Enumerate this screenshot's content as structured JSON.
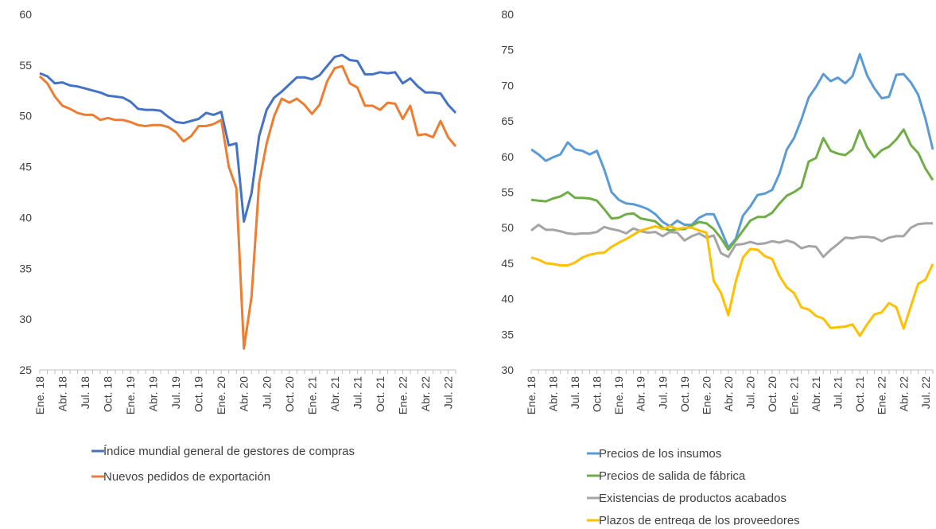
{
  "chart_data": [
    {
      "type": "line",
      "categories": [
        "Ene. 18",
        null,
        null,
        "Abr. 18",
        null,
        null,
        "Jul. 18",
        null,
        null,
        "Oct. 18",
        null,
        null,
        "Ene. 19",
        null,
        null,
        "Abr. 19",
        null,
        null,
        "Jul. 19",
        null,
        null,
        "Oct. 19",
        null,
        null,
        "Ene. 20",
        null,
        null,
        "Abr. 20",
        null,
        null,
        "Jul. 20",
        null,
        null,
        "Oct. 20",
        null,
        null,
        "Ene. 21",
        null,
        null,
        "Abr. 21",
        null,
        null,
        "Jul. 21",
        null,
        null,
        "Oct. 21",
        null,
        null,
        "Ene. 22",
        null,
        null,
        "Abr. 22",
        null,
        null,
        "Jul. 22",
        null
      ],
      "ylim": [
        25,
        60
      ],
      "yticks": [
        25,
        30,
        35,
        40,
        45,
        50,
        55,
        60
      ],
      "grid": false,
      "series": [
        {
          "name": "Índice mundial general de gestores de compras",
          "color": "#4472c4",
          "values": [
            54.2,
            53.9,
            53.2,
            53.3,
            53.0,
            52.9,
            52.7,
            52.5,
            52.3,
            52.0,
            51.9,
            51.8,
            51.4,
            50.7,
            50.6,
            50.6,
            50.5,
            49.9,
            49.4,
            49.3,
            49.5,
            49.7,
            50.3,
            50.1,
            50.4,
            47.1,
            47.3,
            39.6,
            42.4,
            48.0,
            50.6,
            51.8,
            52.4,
            53.1,
            53.8,
            53.8,
            53.6,
            54.0,
            54.9,
            55.8,
            56.0,
            55.5,
            55.4,
            54.1,
            54.1,
            54.3,
            54.2,
            54.3,
            53.2,
            53.7,
            52.9,
            52.3,
            52.3,
            52.2,
            51.1,
            50.3
          ]
        },
        {
          "name": "Nuevos pedidos de exportación",
          "color": "#ed7d31",
          "values": [
            53.9,
            53.2,
            51.9,
            51.0,
            50.7,
            50.3,
            50.1,
            50.1,
            49.6,
            49.8,
            49.6,
            49.6,
            49.4,
            49.1,
            49.0,
            49.1,
            49.1,
            48.9,
            48.4,
            47.5,
            48.0,
            49.0,
            49.0,
            49.2,
            49.6,
            45.0,
            42.9,
            27.1,
            32.2,
            43.4,
            47.3,
            50.0,
            51.7,
            51.3,
            51.7,
            51.1,
            50.2,
            51.1,
            53.4,
            54.7,
            54.9,
            53.2,
            52.8,
            51.0,
            51.0,
            50.6,
            51.3,
            51.2,
            49.7,
            51.0,
            48.1,
            48.2,
            47.9,
            49.5,
            47.9,
            47.0
          ]
        }
      ]
    },
    {
      "type": "line",
      "categories": [
        "Ene. 18",
        null,
        null,
        "Abr. 18",
        null,
        null,
        "Jul. 18",
        null,
        null,
        "Oct. 18",
        null,
        null,
        "Ene. 19",
        null,
        null,
        "Abr. 19",
        null,
        null,
        "Jul. 19",
        null,
        null,
        "Oct. 19",
        null,
        null,
        "Ene. 20",
        null,
        null,
        "Abr. 20",
        null,
        null,
        "Jul. 20",
        null,
        null,
        "Oct. 20",
        null,
        null,
        "Ene. 21",
        null,
        null,
        "Abr. 21",
        null,
        null,
        "Jul. 21",
        null,
        null,
        "Oct. 21",
        null,
        null,
        "Ene. 22",
        null,
        null,
        "Abr. 22",
        null,
        null,
        "Jul. 22",
        null
      ],
      "ylim": [
        30,
        80
      ],
      "yticks": [
        30,
        35,
        40,
        45,
        50,
        55,
        60,
        65,
        70,
        75,
        80
      ],
      "grid": false,
      "series": [
        {
          "name": "Precios de los insumos",
          "color": "#5b9bd5",
          "values": [
            61.0,
            60.3,
            59.4,
            59.9,
            60.3,
            62.0,
            61.0,
            60.8,
            60.3,
            60.8,
            58.2,
            55.0,
            53.9,
            53.4,
            53.3,
            53.0,
            52.6,
            51.9,
            50.8,
            50.2,
            51.0,
            50.4,
            50.4,
            51.4,
            51.9,
            51.9,
            49.7,
            47.2,
            48.4,
            51.7,
            53.0,
            54.6,
            54.8,
            55.3,
            57.6,
            61.0,
            62.6,
            65.2,
            68.3,
            69.8,
            71.6,
            70.6,
            71.1,
            70.3,
            71.3,
            74.4,
            71.4,
            69.6,
            68.2,
            68.4,
            71.5,
            71.6,
            70.4,
            68.7,
            65.3,
            61.0
          ]
        },
        {
          "name": "Precios de salida de fábrica",
          "color": "#70ad47",
          "values": [
            53.9,
            53.8,
            53.7,
            54.1,
            54.4,
            55.0,
            54.2,
            54.2,
            54.1,
            53.8,
            52.6,
            51.3,
            51.4,
            51.9,
            52.0,
            51.3,
            51.1,
            50.9,
            50.0,
            49.6,
            49.8,
            49.8,
            50.3,
            50.8,
            50.6,
            49.8,
            48.5,
            46.9,
            48.2,
            49.6,
            51.0,
            51.5,
            51.5,
            52.1,
            53.4,
            54.5,
            55.0,
            55.7,
            59.3,
            59.8,
            62.6,
            60.8,
            60.4,
            60.2,
            61.0,
            63.7,
            61.3,
            59.9,
            60.9,
            61.4,
            62.4,
            63.8,
            61.6,
            60.5,
            58.3,
            56.7
          ]
        },
        {
          "name": "Existencias de productos acabados",
          "color": "#a5a5a5",
          "values": [
            49.6,
            50.4,
            49.7,
            49.7,
            49.5,
            49.2,
            49.1,
            49.2,
            49.2,
            49.4,
            50.1,
            49.8,
            49.6,
            49.2,
            49.9,
            49.5,
            49.3,
            49.4,
            48.8,
            49.4,
            49.3,
            48.2,
            48.8,
            49.2,
            48.6,
            48.9,
            46.4,
            45.9,
            47.6,
            47.7,
            48.0,
            47.7,
            47.8,
            48.1,
            47.9,
            48.2,
            47.9,
            47.1,
            47.4,
            47.3,
            45.9,
            46.9,
            47.7,
            48.6,
            48.5,
            48.7,
            48.7,
            48.6,
            48.1,
            48.6,
            48.8,
            48.8,
            50.0,
            50.5,
            50.6,
            50.6
          ]
        },
        {
          "name": "Plazos de entrega de los proveedores",
          "color": "#ffc000",
          "values": [
            45.8,
            45.5,
            45.0,
            44.9,
            44.7,
            44.7,
            45.1,
            45.8,
            46.2,
            46.4,
            46.5,
            47.3,
            47.9,
            48.4,
            49.0,
            49.6,
            49.9,
            50.2,
            49.8,
            50.2,
            49.8,
            50.0,
            50.0,
            49.6,
            49.3,
            42.5,
            40.8,
            37.7,
            42.4,
            45.8,
            47.0,
            46.9,
            46.0,
            45.6,
            43.2,
            41.6,
            40.8,
            38.8,
            38.5,
            37.6,
            37.2,
            35.9,
            36.0,
            36.1,
            36.4,
            34.8,
            36.4,
            37.8,
            38.1,
            39.4,
            38.8,
            35.8,
            39.0,
            42.1,
            42.7,
            44.9
          ]
        }
      ]
    }
  ]
}
